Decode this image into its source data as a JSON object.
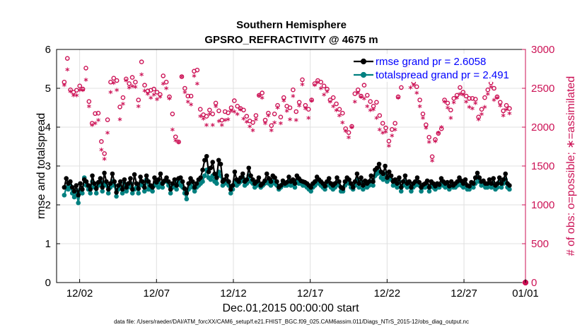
{
  "chart_data": {
    "type": "line",
    "title": "Southern Hemisphere",
    "subtitle": "GPSRO_REFRACTIVITY @ 4675 m",
    "xlabel": "Dec.01,2015 00:00:00 start",
    "ylabel": "rmse and totalspread",
    "y2label": "# of obs: o=possible; ∗=assimilated",
    "footer": "data file: /Users/raeder/DAI/ATM_forcXX/CAM6_setup/f.e21.FHIST_BGC.f09_025.CAM6assim.011/Diags_NTrS_2015-12/obs_diag_output.nc",
    "xlim": [
      0.5,
      31.0
    ],
    "ylim": [
      0,
      6
    ],
    "y2lim": [
      0,
      3000
    ],
    "x_ticks": [
      2,
      7,
      12,
      17,
      22,
      27,
      31
    ],
    "x_tick_labels": [
      "12/02",
      "12/07",
      "12/12",
      "12/17",
      "12/22",
      "12/27",
      "01/01"
    ],
    "y_ticks": [
      0,
      1,
      2,
      3,
      4,
      5,
      6
    ],
    "y_tick_labels": [
      "0",
      "1",
      "2",
      "3",
      "4",
      "5",
      "6"
    ],
    "y2_ticks": [
      0,
      500,
      1000,
      1500,
      2000,
      2500,
      3000
    ],
    "y2_tick_labels": [
      "0",
      "500",
      "1000",
      "1500",
      "2000",
      "2500",
      "3000"
    ],
    "grid": true,
    "legend_position": "top-right",
    "colors": {
      "rmse": "#000000",
      "spread": "#008080",
      "obs": "#cc1155",
      "grid": "#e0e0e0",
      "legend_text": "#0000ff"
    },
    "series": [
      {
        "name": "rmse grand pr = 2.6058",
        "axis": "left",
        "values": [
          2.45,
          2.68,
          2.55,
          2.6,
          2.45,
          2.35,
          2.5,
          2.25,
          2.55,
          2.4,
          2.65,
          2.6,
          2.5,
          2.4,
          2.75,
          2.55,
          2.42,
          2.58,
          2.68,
          2.45,
          2.82,
          2.6,
          2.4,
          2.55,
          2.8,
          2.6,
          2.32,
          2.5,
          2.6,
          2.4,
          2.65,
          2.45,
          2.55,
          2.68,
          2.4,
          2.78,
          2.55,
          2.42,
          2.72,
          2.6,
          2.45,
          2.75,
          2.6,
          2.5,
          2.45,
          2.7,
          2.58,
          2.65,
          2.8,
          2.55,
          2.62,
          2.7,
          2.6,
          2.4,
          2.55,
          2.65,
          2.5,
          2.68,
          2.7,
          2.6,
          2.42,
          2.3,
          2.55,
          2.68,
          2.6,
          2.45,
          2.55,
          2.65,
          2.7,
          2.9,
          3.15,
          3.25,
          2.85,
          2.95,
          3.1,
          2.8,
          2.7,
          3.15,
          3.05,
          2.6,
          2.65,
          2.75,
          2.6,
          2.4,
          2.5,
          2.85,
          2.65,
          2.6,
          2.7,
          2.8,
          2.6,
          2.65,
          2.95,
          2.75,
          2.65,
          2.55,
          2.6,
          2.7,
          2.5,
          2.55,
          2.62,
          2.8,
          2.68,
          2.6,
          2.75,
          2.7,
          2.6,
          2.45,
          2.5,
          2.62,
          2.55,
          2.58,
          2.72,
          2.6,
          2.65,
          2.55,
          2.75,
          2.68,
          2.62,
          2.6,
          2.58,
          2.55,
          2.5,
          2.45,
          2.55,
          2.6,
          2.72,
          2.65,
          2.6,
          2.55,
          2.48,
          2.6,
          2.68,
          2.55,
          2.5,
          2.55,
          2.7,
          2.6,
          2.45,
          2.42,
          2.6,
          2.7,
          2.65,
          2.55,
          2.45,
          2.6,
          2.8,
          2.55,
          2.7,
          2.5,
          2.62,
          2.55,
          2.6,
          2.75,
          2.6,
          2.9,
          2.95,
          3.05,
          2.85,
          2.8,
          3.0,
          2.7,
          2.85,
          2.75,
          2.6,
          2.65,
          2.55,
          2.7,
          2.45,
          2.6,
          2.75,
          2.55,
          2.6,
          2.45,
          2.55,
          2.6,
          2.7,
          2.58,
          2.45,
          2.52,
          2.55,
          2.62,
          2.45,
          2.6,
          2.55,
          2.48,
          2.55,
          2.52,
          2.68,
          2.6,
          2.55,
          2.58,
          2.48,
          2.6,
          2.5,
          2.55,
          2.6,
          2.7,
          2.62,
          2.55,
          2.65,
          2.5,
          2.48,
          2.58,
          2.55,
          2.7,
          2.82,
          2.7,
          2.6,
          2.62,
          2.55,
          2.55,
          2.65,
          2.55,
          2.68,
          2.5,
          2.55,
          2.7,
          2.55,
          2.65,
          2.8,
          2.55,
          2.5
        ]
      },
      {
        "name": "totalspread grand pr = 2.491",
        "axis": "left",
        "values": [
          2.25,
          2.45,
          2.4,
          2.5,
          2.3,
          2.2,
          2.35,
          2.05,
          2.4,
          2.3,
          2.7,
          2.5,
          2.4,
          2.3,
          2.6,
          2.45,
          2.3,
          2.5,
          2.6,
          2.35,
          2.55,
          2.5,
          2.3,
          2.45,
          2.6,
          2.5,
          2.22,
          2.4,
          2.45,
          2.3,
          2.55,
          2.35,
          2.45,
          2.55,
          2.3,
          2.4,
          2.45,
          2.3,
          2.55,
          2.5,
          2.35,
          2.65,
          2.4,
          2.4,
          2.35,
          2.5,
          2.55,
          2.45,
          2.55,
          2.45,
          2.6,
          2.6,
          2.5,
          2.3,
          2.45,
          2.5,
          2.4,
          2.6,
          2.5,
          2.45,
          2.3,
          2.15,
          2.4,
          2.55,
          2.45,
          2.35,
          2.45,
          2.5,
          2.55,
          2.6,
          2.75,
          2.9,
          2.7,
          2.65,
          2.75,
          2.6,
          2.55,
          2.85,
          2.75,
          2.5,
          2.55,
          2.6,
          2.5,
          2.3,
          2.4,
          2.6,
          2.5,
          2.55,
          2.6,
          2.7,
          2.5,
          2.55,
          2.75,
          2.6,
          2.55,
          2.45,
          2.5,
          2.55,
          2.45,
          2.5,
          2.55,
          2.6,
          2.55,
          2.5,
          2.6,
          2.55,
          2.5,
          2.4,
          2.45,
          2.55,
          2.5,
          2.5,
          2.6,
          2.5,
          2.55,
          2.45,
          2.6,
          2.55,
          2.55,
          2.5,
          2.5,
          2.45,
          2.4,
          2.35,
          2.45,
          2.5,
          2.6,
          2.55,
          2.5,
          2.45,
          2.4,
          2.5,
          2.55,
          2.45,
          2.4,
          2.45,
          2.55,
          2.5,
          2.35,
          2.35,
          2.5,
          2.6,
          2.55,
          2.45,
          2.4,
          2.5,
          2.65,
          2.45,
          2.6,
          2.4,
          2.55,
          2.45,
          2.5,
          2.6,
          2.5,
          2.75,
          2.8,
          2.85,
          2.7,
          2.65,
          2.8,
          2.6,
          2.7,
          2.65,
          2.5,
          2.55,
          2.45,
          2.6,
          2.35,
          2.5,
          2.6,
          2.45,
          2.5,
          2.35,
          2.45,
          2.5,
          2.6,
          2.5,
          2.35,
          2.45,
          2.45,
          2.5,
          2.35,
          2.5,
          2.45,
          2.4,
          2.45,
          2.45,
          2.55,
          2.5,
          2.45,
          2.5,
          2.4,
          2.5,
          2.45,
          2.45,
          2.5,
          2.6,
          2.5,
          2.45,
          2.55,
          2.4,
          2.4,
          2.5,
          2.45,
          2.55,
          2.7,
          2.6,
          2.5,
          2.55,
          2.45,
          2.45,
          2.55,
          2.45,
          2.55,
          2.4,
          2.45,
          2.6,
          2.45,
          2.55,
          2.65,
          2.45,
          2.4
        ]
      },
      {
        "name": "possible",
        "axis": "right",
        "marker": "o",
        "values": [
          2580,
          2885,
          2480,
          2450,
          2475,
          2530,
          2490,
          2760,
          2330,
          2050,
          2175,
          2180,
          1815,
          1660,
          2095,
          2580,
          2630,
          2600,
          2260,
          2380,
          2620,
          2560,
          2640,
          2580,
          2350,
          2840,
          2540,
          2465,
          2475,
          2490,
          2450,
          2420,
          2660,
          2580,
          2390,
          2170,
          1875,
          1810,
          2650,
          2500,
          2400,
          2400,
          2720,
          2735,
          2230,
          2160,
          2140,
          2220,
          2170,
          2310,
          2210,
          2090,
          2200,
          2185,
          2250,
          2340,
          2270,
          2240,
          2220,
          2140,
          2080,
          2060,
          2150,
          2410,
          2440,
          2090,
          2180,
          2020,
          2170,
          2280,
          2130,
          2380,
          2270,
          2250,
          2480,
          2200,
          2320,
          2610,
          2280,
          2230,
          2350,
          2560,
          2600,
          2580,
          2530,
          2490,
          2350,
          2380,
          2300,
          2230,
          2180,
          1980,
          1930,
          2010,
          2430,
          2480,
          2400,
          2540,
          2410,
          2330,
          2270,
          2320,
          2150,
          2050,
          1990,
          1820,
          1970,
          2050,
          2390,
          2510,
          2720,
          2800,
          2660,
          2580,
          2520,
          2350,
          2170,
          2030,
          1870,
          1620,
          1840,
          1920,
          1980,
          2350,
          2310,
          2220,
          2370,
          2410,
          2510,
          2450,
          2400,
          2370,
          2370,
          2360,
          2130,
          2230,
          2380,
          2480,
          2570,
          2500,
          2390,
          2320,
          2210,
          2280,
          2240
        ]
      },
      {
        "name": "assimilated",
        "axis": "right",
        "marker": "*",
        "values": [
          2530,
          2730,
          2450,
          2400,
          2400,
          2470,
          2470,
          2600,
          2260,
          2020,
          2040,
          2080,
          1700,
          1580,
          1920,
          2440,
          2560,
          2470,
          2090,
          2290,
          2590,
          2500,
          2520,
          2510,
          2260,
          2670,
          2460,
          2420,
          2370,
          2410,
          2350,
          2380,
          2550,
          2490,
          2360,
          1960,
          1820,
          1800,
          2640,
          2440,
          2320,
          2280,
          2650,
          2550,
          2130,
          2100,
          2020,
          2160,
          2020,
          2260,
          2070,
          2020,
          2080,
          2090,
          2200,
          2190,
          2160,
          2220,
          2100,
          2060,
          2000,
          1950,
          2090,
          2400,
          2370,
          2040,
          2140,
          1950,
          2050,
          2240,
          2040,
          2330,
          2200,
          2090,
          2390,
          2080,
          2270,
          2540,
          2230,
          2110,
          2330,
          2530,
          2570,
          2490,
          2410,
          2450,
          2320,
          2260,
          2210,
          2140,
          2050,
          1940,
          1860,
          1990,
          2320,
          2430,
          2380,
          2360,
          2260,
          2210,
          2220,
          2110,
          1960,
          1920,
          1930,
          1750,
          1880,
          1960,
          2370,
          2630,
          2680,
          2770,
          2500,
          2530,
          2430,
          2260,
          2110,
          1980,
          1800,
          1560,
          1810,
          1920,
          1990,
          2320,
          2240,
          2110,
          2310,
          2370,
          2420,
          2410,
          2320,
          2250,
          2230,
          2300,
          2090,
          2160,
          2250,
          2420,
          2510,
          2340,
          2370,
          2270,
          2140,
          2220,
          2170
        ]
      }
    ],
    "extra_points": [
      {
        "series": "possible",
        "x": 31.0,
        "value": 0
      },
      {
        "series": "assimilated",
        "x": 31.0,
        "value": 0
      }
    ]
  }
}
